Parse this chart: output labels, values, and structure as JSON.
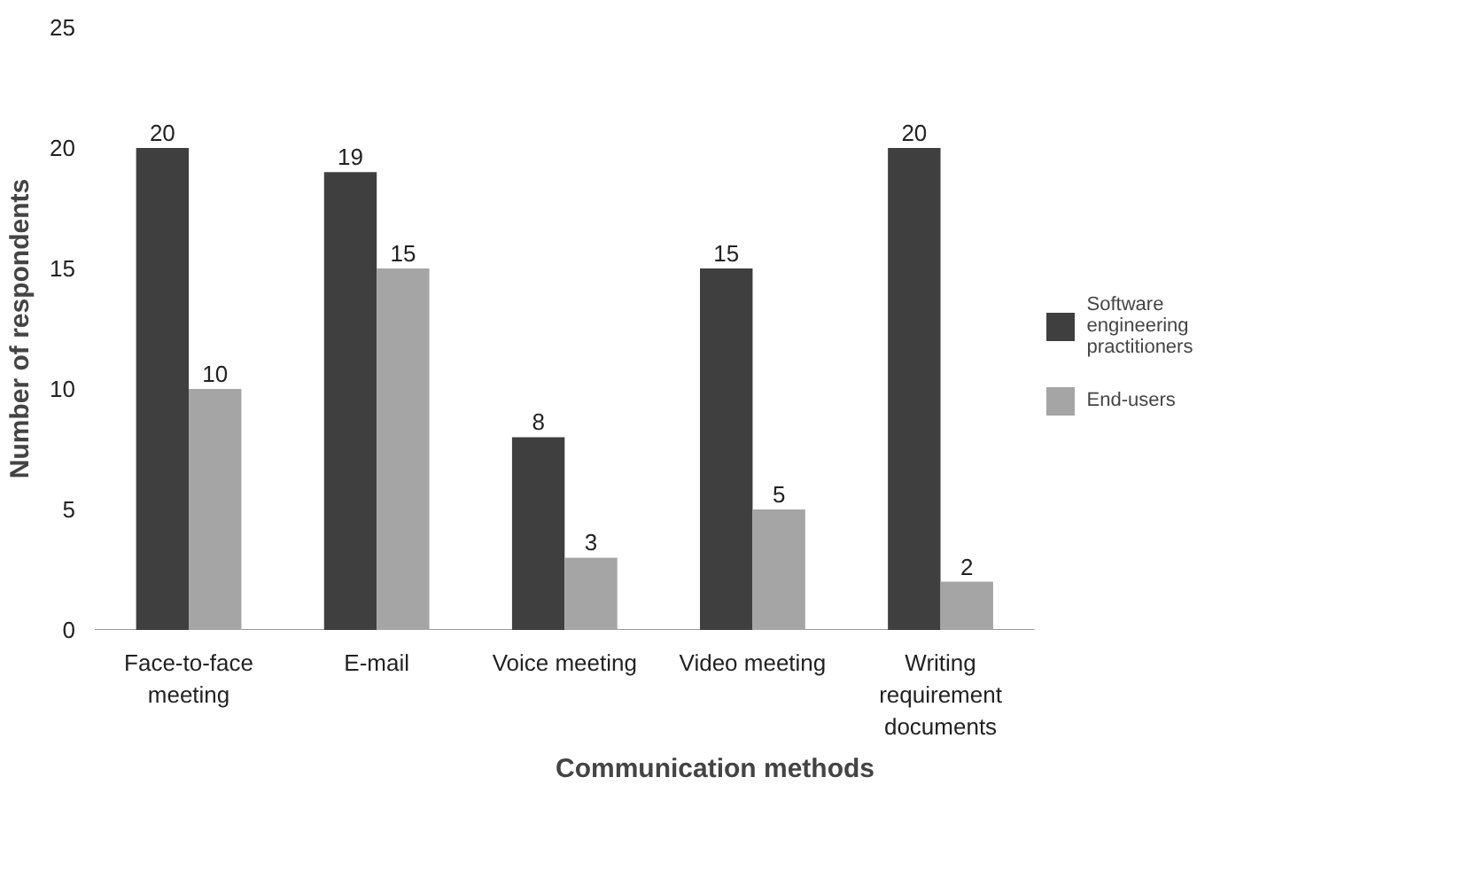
{
  "chart_data": {
    "type": "bar",
    "xlabel": "Communication methods",
    "ylabel": "Number of respondents",
    "categories": [
      "Face-to-face meeting",
      "E-mail",
      "Voice meeting",
      "Video meeting",
      "Writing requirement documents"
    ],
    "series": [
      {
        "name": "Software engineering practitioners",
        "color": "#3f3f3f",
        "values": [
          20,
          19,
          8,
          15,
          20
        ]
      },
      {
        "name": "End-users",
        "color": "#a5a5a5",
        "values": [
          10,
          15,
          3,
          5,
          2
        ]
      }
    ],
    "ylim": [
      0,
      25
    ],
    "yticks": [
      0,
      5,
      10,
      15,
      20,
      25
    ],
    "grid": false,
    "legend": "right",
    "data_labels": true
  }
}
